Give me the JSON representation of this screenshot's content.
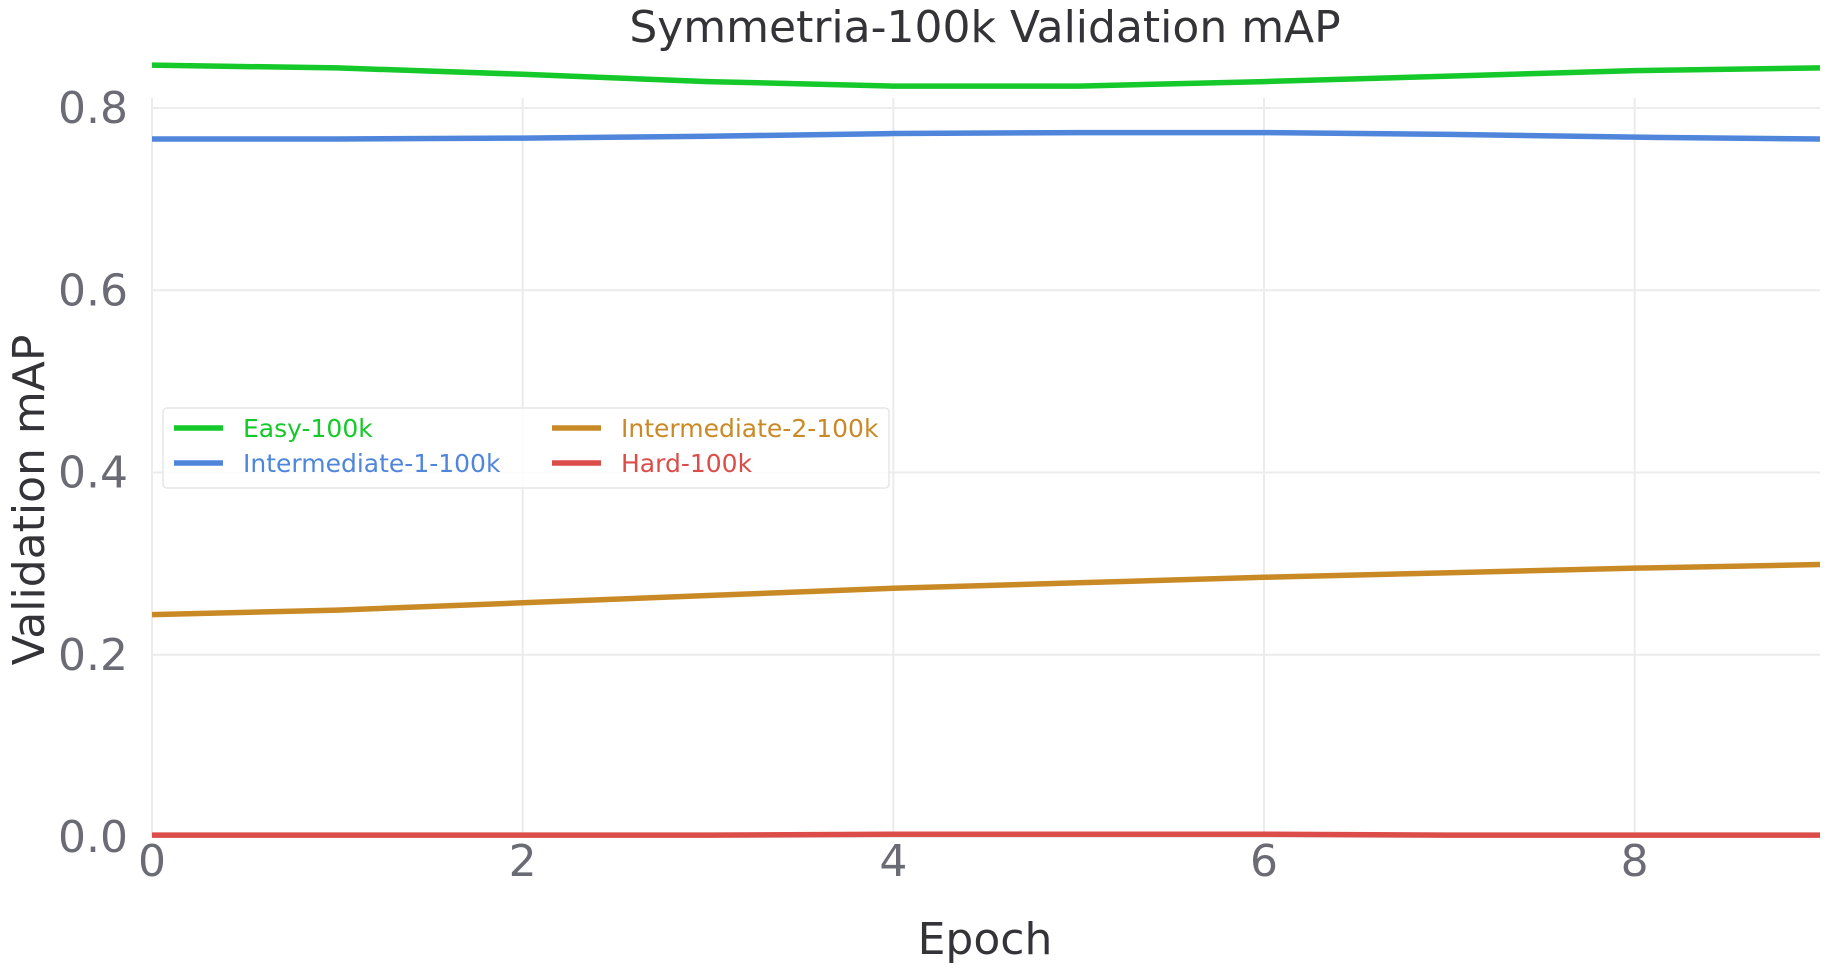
{
  "chart_data": {
    "type": "line",
    "title": "Symmetria-100k Validation mAP",
    "xlabel": "Epoch",
    "ylabel": "Validation mAP",
    "x": [
      0,
      1,
      2,
      3,
      4,
      5,
      6,
      7,
      8,
      9
    ],
    "xlim": [
      0,
      9
    ],
    "ylim": [
      0,
      0.8
    ],
    "x_ticks": [
      "0",
      "2",
      "4",
      "6",
      "8"
    ],
    "x_tick_values": [
      0,
      2,
      4,
      6,
      8
    ],
    "y_ticks": [
      "0.0",
      "0.2",
      "0.4",
      "0.6",
      "0.8"
    ],
    "y_tick_values": [
      0.0,
      0.2,
      0.4,
      0.6,
      0.8
    ],
    "grid": true,
    "legend_position": "center-left",
    "legend_columns": 2,
    "series": [
      {
        "name": "Easy-100k",
        "color": "#14c929",
        "values": [
          0.847,
          0.844,
          0.837,
          0.829,
          0.824,
          0.824,
          0.829,
          0.835,
          0.841,
          0.844
        ]
      },
      {
        "name": "Intermediate-1-100k",
        "color": "#4f86dc",
        "values": [
          0.766,
          0.766,
          0.767,
          0.769,
          0.772,
          0.773,
          0.773,
          0.771,
          0.768,
          0.766
        ]
      },
      {
        "name": "Intermediate-2-100k",
        "color": "#c98a26",
        "values": [
          0.244,
          0.249,
          0.257,
          0.265,
          0.273,
          0.279,
          0.285,
          0.29,
          0.295,
          0.299
        ]
      },
      {
        "name": "Hard-100k",
        "color": "#dc4d4a",
        "values": [
          0.002,
          0.002,
          0.002,
          0.002,
          0.003,
          0.003,
          0.003,
          0.002,
          0.002,
          0.002
        ]
      }
    ]
  }
}
